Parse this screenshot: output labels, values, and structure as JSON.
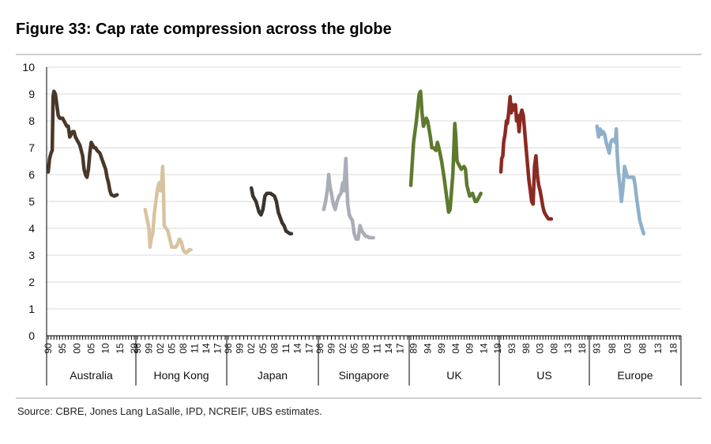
{
  "figure": {
    "title": "Figure 33: Cap rate compression across the globe",
    "source": "Source:  CBRE, Jones Lang LaSalle, IPD, NCREIF, UBS estimates."
  },
  "chart_data": {
    "type": "line",
    "title": "Figure 33: Cap rate compression across the globe",
    "xlabel": "",
    "ylabel": "",
    "ylim": [
      0,
      10
    ],
    "yticks": [
      0,
      1,
      2,
      3,
      4,
      5,
      6,
      7,
      8,
      9,
      10
    ],
    "grid": true,
    "legend": "none",
    "groups": [
      {
        "name": "Australia",
        "color": "#4a3728",
        "xlim": [
          1990,
          2020
        ],
        "tick_labels": [
          "90",
          "95",
          "00",
          "05",
          "10",
          "15",
          "20"
        ],
        "tick_years": [
          1990,
          1995,
          2000,
          2005,
          2010,
          2015,
          2020
        ],
        "points": [
          [
            1990.0,
            6.1
          ],
          [
            1990.5,
            6.6
          ],
          [
            1991.0,
            6.8
          ],
          [
            1991.4,
            6.9
          ],
          [
            1991.7,
            8.9
          ],
          [
            1992.0,
            9.1
          ],
          [
            1992.5,
            9.0
          ],
          [
            1993.0,
            8.6
          ],
          [
            1993.5,
            8.2
          ],
          [
            1994.0,
            8.1
          ],
          [
            1995.0,
            8.1
          ],
          [
            1995.5,
            8.0
          ],
          [
            1996.0,
            7.9
          ],
          [
            1996.5,
            7.8
          ],
          [
            1997.0,
            7.8
          ],
          [
            1997.5,
            7.4
          ],
          [
            1998.0,
            7.5
          ],
          [
            1998.5,
            7.6
          ],
          [
            1999.0,
            7.6
          ],
          [
            1999.5,
            7.4
          ],
          [
            2000.0,
            7.3
          ],
          [
            2001.0,
            7.1
          ],
          [
            2002.0,
            6.7
          ],
          [
            2002.5,
            6.2
          ],
          [
            2003.0,
            6.0
          ],
          [
            2003.5,
            5.9
          ],
          [
            2004.0,
            6.2
          ],
          [
            2004.5,
            6.8
          ],
          [
            2005.0,
            7.2
          ],
          [
            2005.5,
            7.1
          ],
          [
            2006.0,
            7.0
          ],
          [
            2006.5,
            7.0
          ],
          [
            2007.0,
            6.9
          ],
          [
            2008.0,
            6.8
          ],
          [
            2009.0,
            6.5
          ],
          [
            2010.0,
            6.2
          ],
          [
            2010.5,
            5.9
          ],
          [
            2011.0,
            5.7
          ],
          [
            2011.5,
            5.4
          ],
          [
            2012.0,
            5.25
          ],
          [
            2013.0,
            5.2
          ],
          [
            2014.0,
            5.25
          ]
        ]
      },
      {
        "name": "Hong Kong",
        "color": "#d8c3a0",
        "xlim": [
          1996,
          2019
        ],
        "tick_labels": [
          "96",
          "99",
          "02",
          "05",
          "08",
          "11",
          "14",
          "17"
        ],
        "tick_years": [
          1996,
          1999,
          2002,
          2005,
          2008,
          2011,
          2014,
          2017
        ],
        "points": [
          [
            1998.0,
            4.7
          ],
          [
            1998.6,
            4.3
          ],
          [
            1999.0,
            4.0
          ],
          [
            1999.3,
            3.3
          ],
          [
            1999.6,
            3.6
          ],
          [
            2000.0,
            3.8
          ],
          [
            2000.4,
            4.5
          ],
          [
            2000.8,
            5.0
          ],
          [
            2001.3,
            5.5
          ],
          [
            2001.7,
            5.7
          ],
          [
            2002.0,
            5.4
          ],
          [
            2002.3,
            5.6
          ],
          [
            2002.6,
            6.3
          ],
          [
            2002.8,
            5.6
          ],
          [
            2003.0,
            4.1
          ],
          [
            2003.5,
            4.0
          ],
          [
            2004.0,
            3.9
          ],
          [
            2004.5,
            3.6
          ],
          [
            2005.0,
            3.3
          ],
          [
            2005.5,
            3.3
          ],
          [
            2006.0,
            3.3
          ],
          [
            2006.5,
            3.4
          ],
          [
            2007.0,
            3.6
          ],
          [
            2007.5,
            3.5
          ],
          [
            2008.0,
            3.2
          ],
          [
            2008.5,
            3.1
          ],
          [
            2009.0,
            3.1
          ],
          [
            2009.5,
            3.2
          ],
          [
            2010.0,
            3.2
          ]
        ]
      },
      {
        "name": "Japan",
        "color": "#3b3530",
        "xlim": [
          1996,
          2019
        ],
        "tick_labels": [
          "96",
          "99",
          "02",
          "05",
          "08",
          "11",
          "14",
          "17"
        ],
        "tick_years": [
          1996,
          1999,
          2002,
          2005,
          2008,
          2011,
          2014,
          2017
        ],
        "points": [
          [
            2002.0,
            5.5
          ],
          [
            2002.4,
            5.2
          ],
          [
            2002.8,
            5.1
          ],
          [
            2003.2,
            5.0
          ],
          [
            2003.6,
            4.8
          ],
          [
            2004.0,
            4.6
          ],
          [
            2004.5,
            4.5
          ],
          [
            2005.0,
            4.7
          ],
          [
            2005.5,
            5.2
          ],
          [
            2006.0,
            5.3
          ],
          [
            2006.5,
            5.3
          ],
          [
            2007.0,
            5.3
          ],
          [
            2007.5,
            5.25
          ],
          [
            2008.0,
            5.2
          ],
          [
            2008.5,
            5.0
          ],
          [
            2009.0,
            4.6
          ],
          [
            2009.5,
            4.4
          ],
          [
            2010.0,
            4.2
          ],
          [
            2010.5,
            4.1
          ],
          [
            2011.0,
            3.9
          ],
          [
            2011.5,
            3.85
          ],
          [
            2012.0,
            3.8
          ],
          [
            2012.4,
            3.8
          ]
        ]
      },
      {
        "name": "Singapore",
        "color": "#a9adb6",
        "xlim": [
          1996,
          2019
        ],
        "tick_labels": [
          "96",
          "99",
          "02",
          "05",
          "08",
          "11",
          "14",
          "17"
        ],
        "tick_years": [
          1996,
          1999,
          2002,
          2005,
          2008,
          2011,
          2014,
          2017
        ],
        "points": [
          [
            1997.0,
            4.7
          ],
          [
            1997.5,
            5.0
          ],
          [
            1998.0,
            5.5
          ],
          [
            1998.3,
            6.0
          ],
          [
            1998.6,
            5.6
          ],
          [
            1999.0,
            5.3
          ],
          [
            1999.5,
            4.9
          ],
          [
            2000.0,
            4.7
          ],
          [
            2000.5,
            5.0
          ],
          [
            2001.0,
            5.2
          ],
          [
            2001.5,
            5.3
          ],
          [
            2002.0,
            5.7
          ],
          [
            2002.3,
            5.4
          ],
          [
            2002.6,
            6.2
          ],
          [
            2002.8,
            6.6
          ],
          [
            2003.0,
            5.8
          ],
          [
            2003.3,
            4.9
          ],
          [
            2003.7,
            4.5
          ],
          [
            2004.0,
            4.4
          ],
          [
            2004.5,
            4.3
          ],
          [
            2005.0,
            3.8
          ],
          [
            2005.5,
            3.6
          ],
          [
            2006.0,
            3.6
          ],
          [
            2006.5,
            4.1
          ],
          [
            2007.0,
            3.9
          ],
          [
            2007.5,
            3.8
          ],
          [
            2008.0,
            3.7
          ],
          [
            2008.5,
            3.7
          ],
          [
            2009.0,
            3.65
          ],
          [
            2010.0,
            3.65
          ]
        ]
      },
      {
        "name": "UK",
        "color": "#5d7a2e",
        "xlim": [
          1988,
          2019
        ],
        "tick_labels": [
          "89",
          "94",
          "99",
          "04",
          "09",
          "14",
          "19"
        ],
        "tick_years": [
          1989,
          1994,
          1999,
          2004,
          2009,
          2014,
          2019
        ],
        "points": [
          [
            1988.0,
            5.6
          ],
          [
            1989.0,
            7.2
          ],
          [
            1990.0,
            8.0
          ],
          [
            1991.0,
            9.0
          ],
          [
            1991.5,
            9.1
          ],
          [
            1992.0,
            8.3
          ],
          [
            1992.5,
            7.8
          ],
          [
            1993.5,
            8.1
          ],
          [
            1994.0,
            8.0
          ],
          [
            1995.0,
            7.4
          ],
          [
            1995.5,
            7.0
          ],
          [
            1996.0,
            7.0
          ],
          [
            1997.0,
            6.9
          ],
          [
            1997.5,
            7.2
          ],
          [
            1998.0,
            7.0
          ],
          [
            1999.0,
            6.5
          ],
          [
            2000.0,
            5.8
          ],
          [
            2001.0,
            5.0
          ],
          [
            2001.5,
            4.6
          ],
          [
            2002.0,
            4.7
          ],
          [
            2003.0,
            6.0
          ],
          [
            2003.7,
            7.9
          ],
          [
            2004.0,
            7.5
          ],
          [
            2004.5,
            6.5
          ],
          [
            2005.0,
            6.4
          ],
          [
            2006.0,
            6.2
          ],
          [
            2007.0,
            6.3
          ],
          [
            2007.5,
            6.2
          ],
          [
            2008.0,
            5.6
          ],
          [
            2009.0,
            5.2
          ],
          [
            2010.0,
            5.3
          ],
          [
            2011.0,
            5.0
          ],
          [
            2011.5,
            5.0
          ],
          [
            2012.0,
            5.1
          ],
          [
            2013.0,
            5.3
          ]
        ]
      },
      {
        "name": "US",
        "color": "#8b2a22",
        "xlim": [
          1989,
          2020
        ],
        "tick_labels": [
          "93",
          "98",
          "03",
          "08",
          "13",
          "18"
        ],
        "tick_years": [
          1993,
          1998,
          2003,
          2008,
          2013,
          2018
        ],
        "points": [
          [
            1989.0,
            6.1
          ],
          [
            1989.3,
            6.6
          ],
          [
            1989.7,
            6.7
          ],
          [
            1990.0,
            7.2
          ],
          [
            1990.5,
            7.5
          ],
          [
            1991.0,
            8.0
          ],
          [
            1991.3,
            7.9
          ],
          [
            1991.8,
            8.3
          ],
          [
            1992.3,
            8.9
          ],
          [
            1992.7,
            8.3
          ],
          [
            1993.3,
            8.6
          ],
          [
            1993.8,
            8.4
          ],
          [
            1994.2,
            8.6
          ],
          [
            1994.6,
            8.0
          ],
          [
            1995.0,
            8.2
          ],
          [
            1995.5,
            7.6
          ],
          [
            1996.0,
            8.2
          ],
          [
            1996.5,
            8.4
          ],
          [
            1997.0,
            8.2
          ],
          [
            1997.5,
            7.6
          ],
          [
            1998.0,
            7.0
          ],
          [
            1998.5,
            6.4
          ],
          [
            1999.0,
            5.8
          ],
          [
            1999.5,
            5.4
          ],
          [
            2000.0,
            5.0
          ],
          [
            2000.5,
            4.9
          ],
          [
            2001.0,
            6.3
          ],
          [
            2001.5,
            6.7
          ],
          [
            2002.0,
            6.0
          ],
          [
            2002.5,
            5.6
          ],
          [
            2003.0,
            5.4
          ],
          [
            2003.5,
            5.1
          ],
          [
            2004.0,
            4.8
          ],
          [
            2004.5,
            4.6
          ],
          [
            2005.0,
            4.5
          ],
          [
            2006.0,
            4.35
          ],
          [
            2007.0,
            4.35
          ]
        ]
      },
      {
        "name": "Europe",
        "color": "#8fb0cb",
        "xlim": [
          1991,
          2020
        ],
        "tick_labels": [
          "93",
          "98",
          "03",
          "08",
          "13",
          "18"
        ],
        "tick_years": [
          1993,
          1998,
          2003,
          2008,
          2013,
          2018
        ],
        "points": [
          [
            1993.0,
            7.8
          ],
          [
            1993.5,
            7.4
          ],
          [
            1994.0,
            7.7
          ],
          [
            1994.5,
            7.5
          ],
          [
            1995.0,
            7.6
          ],
          [
            1995.5,
            7.5
          ],
          [
            1996.0,
            7.2
          ],
          [
            1997.0,
            6.8
          ],
          [
            1997.5,
            7.2
          ],
          [
            1998.0,
            7.3
          ],
          [
            1998.5,
            7.3
          ],
          [
            1999.0,
            7.2
          ],
          [
            1999.3,
            7.7
          ],
          [
            1999.6,
            6.8
          ],
          [
            2000.0,
            6.1
          ],
          [
            2000.5,
            5.6
          ],
          [
            2001.0,
            5.0
          ],
          [
            2001.5,
            5.5
          ],
          [
            2002.0,
            6.3
          ],
          [
            2002.5,
            6.1
          ],
          [
            2003.0,
            5.9
          ],
          [
            2004.0,
            5.9
          ],
          [
            2005.0,
            5.9
          ],
          [
            2005.5,
            5.6
          ],
          [
            2006.0,
            5.1
          ],
          [
            2006.5,
            4.7
          ],
          [
            2007.0,
            4.3
          ],
          [
            2007.5,
            4.1
          ],
          [
            2008.0,
            3.9
          ],
          [
            2008.3,
            3.8
          ]
        ]
      }
    ]
  }
}
